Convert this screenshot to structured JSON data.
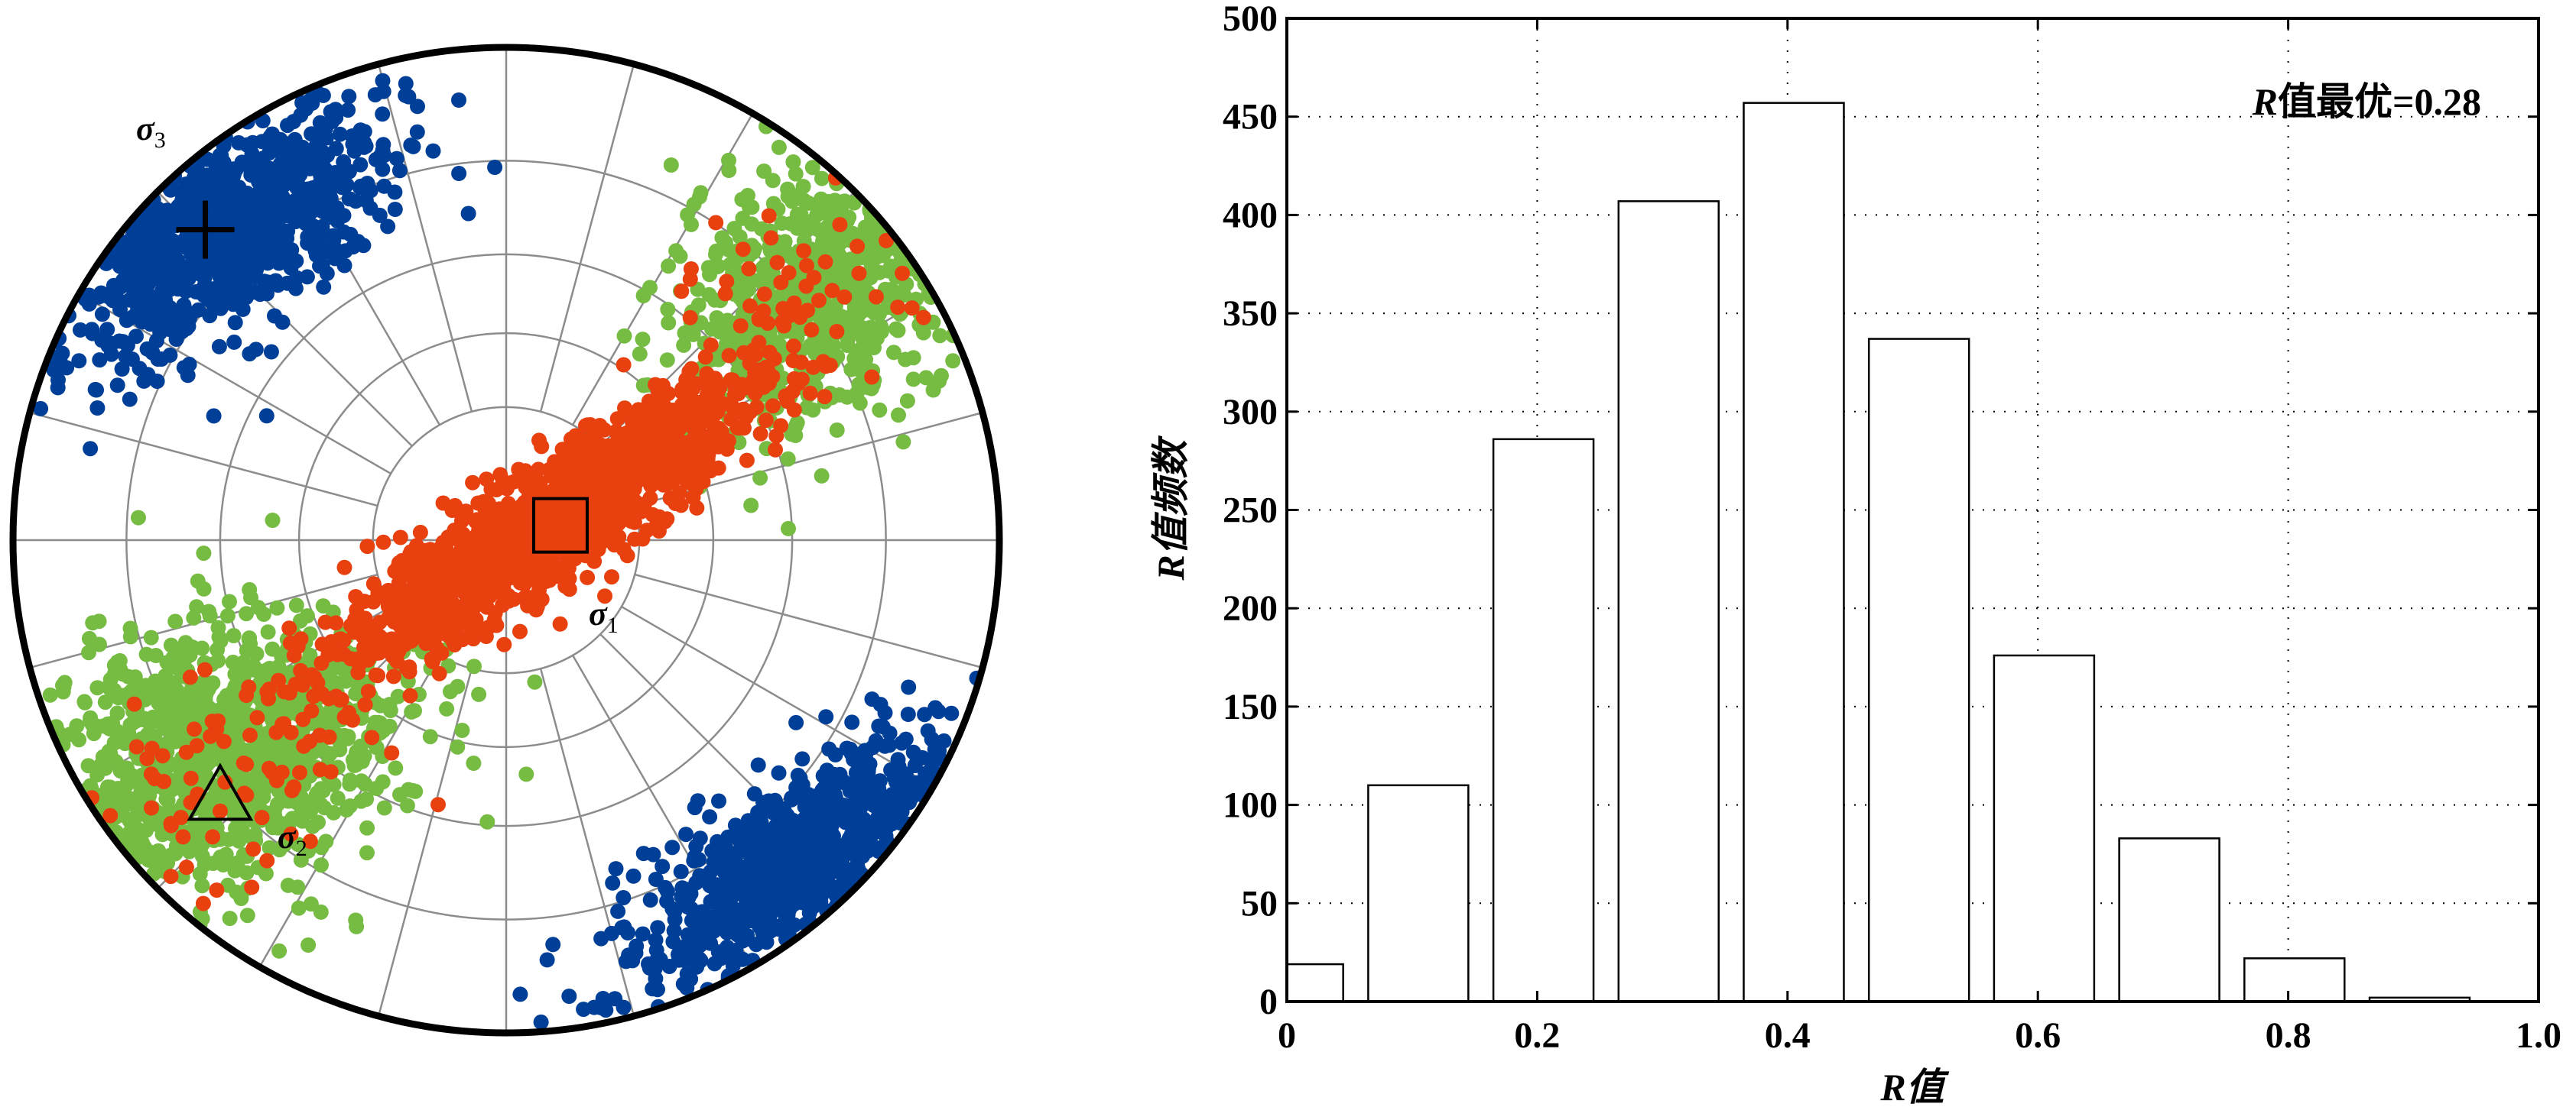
{
  "chart_data": [
    {
      "type": "scatter",
      "title": "",
      "coordinate_system": "stereonet (equal-area lower hemisphere, unit radius)",
      "colors": {
        "sigma1": "#e8410f",
        "sigma2": "#76bc43",
        "sigma3": "#003f98",
        "grid": "#8c8c8c",
        "outline": "#000000"
      },
      "clusters": [
        {
          "name": "sigma3",
          "color": "#003f98",
          "center": [
            -0.58,
            0.62
          ],
          "spread": [
            0.2,
            0.09
          ],
          "angle_deg": 32,
          "count": 900
        },
        {
          "name": "sigma3",
          "color": "#003f98",
          "center": [
            0.58,
            -0.66
          ],
          "spread": [
            0.2,
            0.08
          ],
          "angle_deg": 35,
          "count": 800
        },
        {
          "name": "sigma2",
          "color": "#76bc43",
          "center": [
            -0.6,
            -0.44
          ],
          "spread": [
            0.2,
            0.14
          ],
          "angle_deg": 25,
          "count": 1100
        },
        {
          "name": "sigma2",
          "color": "#76bc43",
          "center": [
            0.64,
            0.5
          ],
          "spread": [
            0.16,
            0.12
          ],
          "angle_deg": 40,
          "count": 700
        },
        {
          "name": "sigma1",
          "color": "#e8410f",
          "center": [
            0.08,
            0.03
          ],
          "spread": [
            0.26,
            0.055
          ],
          "angle_deg": 34,
          "count": 1400
        },
        {
          "name": "sigma1",
          "color": "#e8410f",
          "center": [
            -0.55,
            -0.5
          ],
          "spread": [
            0.15,
            0.1
          ],
          "angle_deg": 25,
          "count": 70
        },
        {
          "name": "sigma1",
          "color": "#e8410f",
          "center": [
            0.6,
            0.5
          ],
          "spread": [
            0.13,
            0.1
          ],
          "angle_deg": 35,
          "count": 60
        }
      ],
      "optimal_axes": [
        {
          "name": "sigma1",
          "symbol": "square",
          "position": [
            0.11,
            0.03
          ]
        },
        {
          "name": "sigma2",
          "symbol": "triangle",
          "position": [
            -0.58,
            -0.52
          ]
        },
        {
          "name": "sigma3",
          "symbol": "plus",
          "position": [
            -0.61,
            0.63
          ]
        }
      ],
      "labels": {
        "sigma1": "σ",
        "sigma1_sub": "1",
        "sigma2": "σ",
        "sigma2_sub": "2",
        "sigma3": "σ",
        "sigma3_sub": "3"
      }
    },
    {
      "type": "bar",
      "title": "",
      "xlabel": "R值",
      "ylabel": "R值频数",
      "xlim": [
        0,
        1.0
      ],
      "ylim": [
        0,
        500
      ],
      "grid": true,
      "bin_centers": [
        0.005,
        0.105,
        0.205,
        0.305,
        0.405,
        0.505,
        0.605,
        0.705,
        0.805,
        0.905
      ],
      "bin_width": 0.08,
      "values": [
        19,
        110,
        286,
        407,
        457,
        337,
        176,
        83,
        22,
        2
      ],
      "xticks": [
        "0",
        "0.2",
        "0.4",
        "0.6",
        "0.8",
        "1.0"
      ],
      "xtick_values": [
        0,
        0.2,
        0.4,
        0.6,
        0.8,
        1.0
      ],
      "yticks": [
        "0",
        "50",
        "100",
        "150",
        "200",
        "250",
        "300",
        "350",
        "400",
        "450",
        "500"
      ],
      "ytick_values": [
        0,
        50,
        100,
        150,
        200,
        250,
        300,
        350,
        400,
        450,
        500
      ],
      "annotation": {
        "prefix": "R",
        "text": "值最优=0.28",
        "location": "top-right"
      }
    }
  ]
}
